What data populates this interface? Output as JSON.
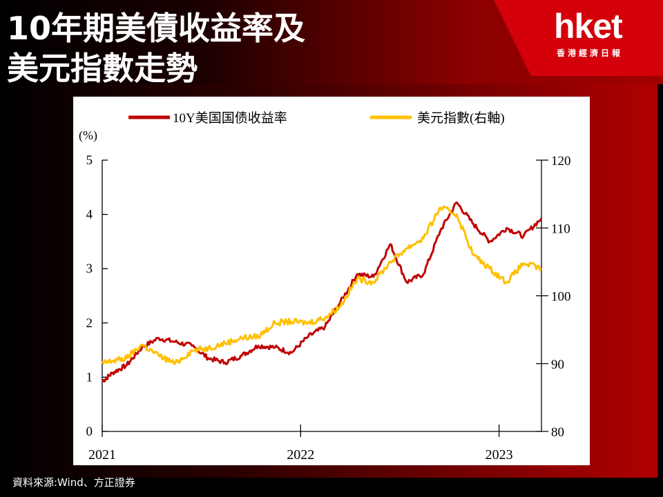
{
  "header": {
    "title_line1": "10年期美債收益率及",
    "title_line2": "美元指數走勢",
    "logo_text": "hket",
    "logo_subtext": "香港經濟日報"
  },
  "footer": {
    "source": "資料來源:Wind、方正證券"
  },
  "colors": {
    "yield_series": "#c00000",
    "dxy_series": "#ffc000"
  },
  "chart_data": {
    "type": "line",
    "title": "",
    "xlabel": "",
    "ylabel_left": "(%)",
    "ylabel_right": "",
    "x_ticks": [
      "2021",
      "2022",
      "2023"
    ],
    "ylim_left": [
      0,
      5
    ],
    "yticks_left": [
      "0",
      "1",
      "2",
      "3",
      "4",
      "5"
    ],
    "ylim_right": [
      80,
      120
    ],
    "yticks_right": [
      "80",
      "90",
      "100",
      "110",
      "120"
    ],
    "grid": false,
    "legend_position": "top",
    "series": [
      {
        "name": "10Y美国国债收益率",
        "axis": "left",
        "color": "#c00000",
        "points": [
          [
            "2021-01",
            0.92
          ],
          [
            "2021-01",
            1.08
          ],
          [
            "2021-02",
            1.22
          ],
          [
            "2021-03",
            1.55
          ],
          [
            "2021-04",
            1.72
          ],
          [
            "2021-05",
            1.65
          ],
          [
            "2021-06",
            1.58
          ],
          [
            "2021-07",
            1.35
          ],
          [
            "2021-08",
            1.27
          ],
          [
            "2021-09",
            1.4
          ],
          [
            "2021-10",
            1.58
          ],
          [
            "2021-11",
            1.55
          ],
          [
            "2021-12",
            1.45
          ],
          [
            "2022-01",
            1.75
          ],
          [
            "2022-02",
            1.93
          ],
          [
            "2022-03",
            2.38
          ],
          [
            "2022-04",
            2.9
          ],
          [
            "2022-05",
            2.85
          ],
          [
            "2022-06",
            3.45
          ],
          [
            "2022-07",
            2.75
          ],
          [
            "2022-08",
            2.9
          ],
          [
            "2022-09",
            3.7
          ],
          [
            "2022-10",
            4.22
          ],
          [
            "2022-11",
            3.82
          ],
          [
            "2022-12",
            3.5
          ],
          [
            "2023-01",
            3.75
          ],
          [
            "2023-02",
            3.6
          ],
          [
            "2023-03",
            3.93
          ]
        ]
      },
      {
        "name": "美元指數(右軸)",
        "axis": "right",
        "color": "#ffc000",
        "points": [
          [
            "2021-01",
            90.0
          ],
          [
            "2021-01",
            90.4
          ],
          [
            "2021-02",
            90.8
          ],
          [
            "2021-03",
            92.8
          ],
          [
            "2021-04",
            91.2
          ],
          [
            "2021-05",
            90.0
          ],
          [
            "2021-06",
            91.9
          ],
          [
            "2021-07",
            92.3
          ],
          [
            "2021-08",
            93.0
          ],
          [
            "2021-09",
            93.8
          ],
          [
            "2021-10",
            94.0
          ],
          [
            "2021-11",
            96.0
          ],
          [
            "2021-12",
            96.2
          ],
          [
            "2022-01",
            96.0
          ],
          [
            "2022-02",
            96.8
          ],
          [
            "2022-03",
            98.5
          ],
          [
            "2022-04",
            102.5
          ],
          [
            "2022-05",
            102.0
          ],
          [
            "2022-06",
            105.0
          ],
          [
            "2022-07",
            107.0
          ],
          [
            "2022-08",
            108.5
          ],
          [
            "2022-09",
            113.0
          ],
          [
            "2022-10",
            112.0
          ],
          [
            "2022-11",
            106.0
          ],
          [
            "2022-12",
            104.0
          ],
          [
            "2023-01",
            102.0
          ],
          [
            "2023-02",
            104.8
          ],
          [
            "2023-03",
            104.0
          ]
        ]
      }
    ]
  }
}
